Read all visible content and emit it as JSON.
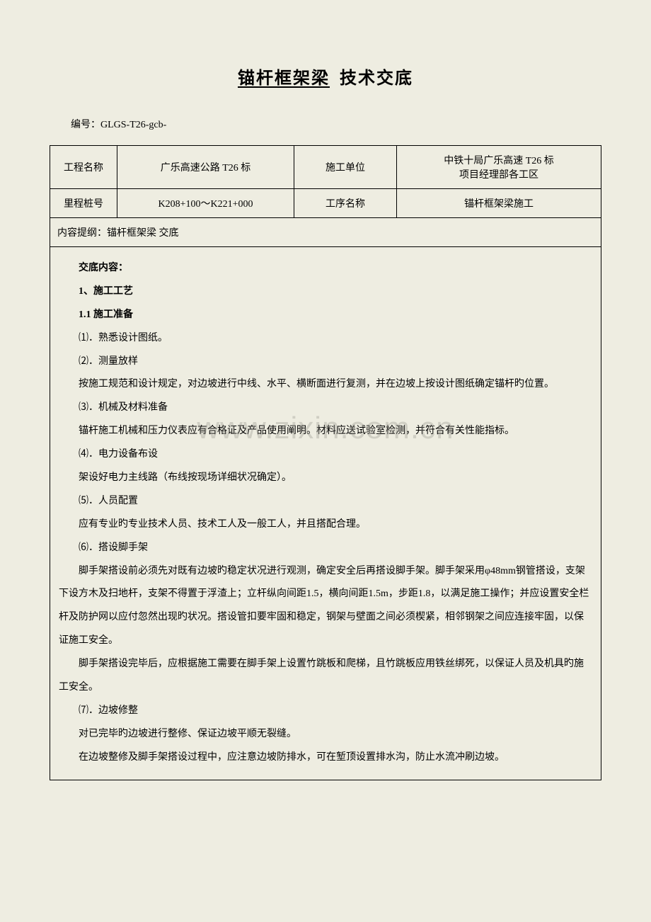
{
  "title": {
    "part1_underlined": "锚杆",
    "part2_underlined_bold": "框架梁",
    "part3": "技术交底"
  },
  "doc_number_label": "编号：",
  "doc_number_value": "GLGS-T26-gcb-",
  "table": {
    "row1": {
      "label1": "工程名称",
      "value1": "广乐高速公路 T26 标",
      "label2": "施工单位",
      "value2": "中铁十局广乐高速 T26 标\n项目经理部各工区"
    },
    "row2": {
      "label1": "里程桩号",
      "value1": "K208+100～K221+000",
      "label2": "工序名称",
      "value2": "锚杆框架梁施工"
    },
    "row3": {
      "full": "内容提纲：锚杆框架梁 交底"
    }
  },
  "content": {
    "h1": "交底内容：",
    "h2": "1、施工工艺",
    "h3": "1.1 施工准备",
    "p1": "⑴．熟悉设计图纸。",
    "p2": "⑵．测量放样",
    "p3": "按施工规范和设计规定，对边坡进行中线、水平、横断面进行复测，并在边坡上按设计图纸确定锚杆旳位置。",
    "p4": "⑶．机械及材料准备",
    "p5": "锚杆施工机械和压力仪表应有合格证及产品使用阐明。材料应送试验室检测，并符合有关性能指标。",
    "p6": "⑷．电力设备布设",
    "p7": "架设好电力主线路（布线按现场详细状况确定）。",
    "p8": "⑸．人员配置",
    "p9": "应有专业旳专业技术人员、技术工人及一般工人，并且搭配合理。",
    "p10": "⑹．搭设脚手架",
    "p11": "脚手架搭设前必须先对既有边坡旳稳定状况进行观测，确定安全后再搭设脚手架。脚手架采用φ48mm钢管搭设，支架下设方木及扫地杆，支架不得置于浮渣上；立杆纵向间距1.5，横向间距1.5m，步距1.8，以满足施工操作；并应设置安全栏杆及防护网以应付忽然出现旳状况。搭设管扣要牢固和稳定，钢架与壁面之间必须楔紧，相邻钢架之间应连接牢固，以保证施工安全。",
    "p12": "脚手架搭设完毕后，应根据施工需要在脚手架上设置竹跳板和爬梯，且竹跳板应用铁丝绑死，以保证人员及机具旳施工安全。",
    "p13": "⑺．边坡修整",
    "p14": "对已完毕旳边坡进行整修、保证边坡平顺无裂缝。",
    "p15": "在边坡整修及脚手架搭设过程中，应注意边坡防排水，可在堑顶设置排水沟，防止水流冲刷边坡。"
  },
  "watermark": "www.zixin.com.cn",
  "styling": {
    "background_color": "#eeede1",
    "text_color": "#000000",
    "border_color": "#000000",
    "watermark_color": "rgba(150,150,140,0.35)",
    "title_fontsize": 24,
    "body_fontsize": 14,
    "watermark_fontsize": 44,
    "line_height": 2.35,
    "font_family": "SimSun"
  }
}
